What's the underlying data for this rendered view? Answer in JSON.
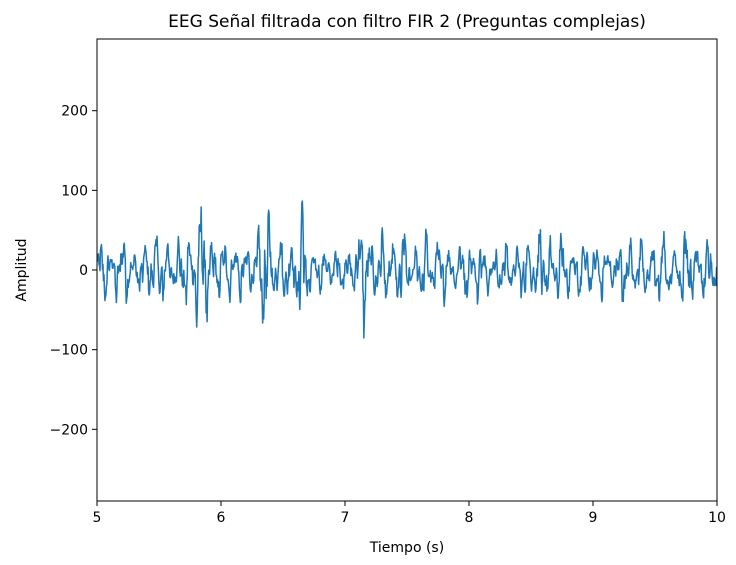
{
  "chart_data": {
    "type": "line",
    "title": "EEG Señal filtrada con filtro FIR 2 (Preguntas complejas)",
    "xlabel": "Tiempo (s)",
    "ylabel": "Amplitud",
    "xlim": [
      5,
      10
    ],
    "ylim": [
      -290,
      290
    ],
    "x_ticks": [
      5,
      6,
      7,
      8,
      9,
      10
    ],
    "x_tick_labels": [
      "5",
      "6",
      "7",
      "8",
      "9",
      "10"
    ],
    "y_ticks": [
      -200,
      -100,
      0,
      100,
      200
    ],
    "y_tick_labels": [
      "−200",
      "−100",
      "0",
      "100",
      "200"
    ],
    "grid": false,
    "series": [
      {
        "color": "#1f77b4",
        "sample_interval": 0.004,
        "envelope": {
          "t": [
            5.0,
            5.05,
            5.1,
            5.2,
            5.3,
            5.4,
            5.45,
            5.55,
            5.65,
            5.75,
            5.82,
            5.9,
            6.0,
            6.1,
            6.2,
            6.3,
            6.38,
            6.45,
            6.55,
            6.6,
            6.65,
            6.75,
            6.85,
            6.95,
            7.0,
            7.05,
            7.15,
            7.25,
            7.35,
            7.45,
            7.55,
            7.62,
            7.7,
            7.8,
            7.9,
            8.0,
            8.1,
            8.2,
            8.3,
            8.4,
            8.5,
            8.6,
            8.7,
            8.8,
            8.9,
            9.0,
            9.1,
            9.2,
            9.3,
            9.4,
            9.5,
            9.6,
            9.7,
            9.78,
            9.85,
            9.95,
            10.0
          ],
          "amp": [
            25,
            50,
            35,
            50,
            30,
            35,
            62,
            45,
            38,
            55,
            92,
            70,
            35,
            50,
            30,
            55,
            95,
            40,
            50,
            55,
            88,
            30,
            25,
            35,
            20,
            40,
            70,
            45,
            55,
            60,
            30,
            45,
            50,
            38,
            35,
            40,
            45,
            30,
            40,
            30,
            50,
            55,
            45,
            40,
            38,
            45,
            30,
            40,
            50,
            42,
            55,
            45,
            40,
            70,
            35,
            50,
            30
          ]
        }
      }
    ]
  }
}
